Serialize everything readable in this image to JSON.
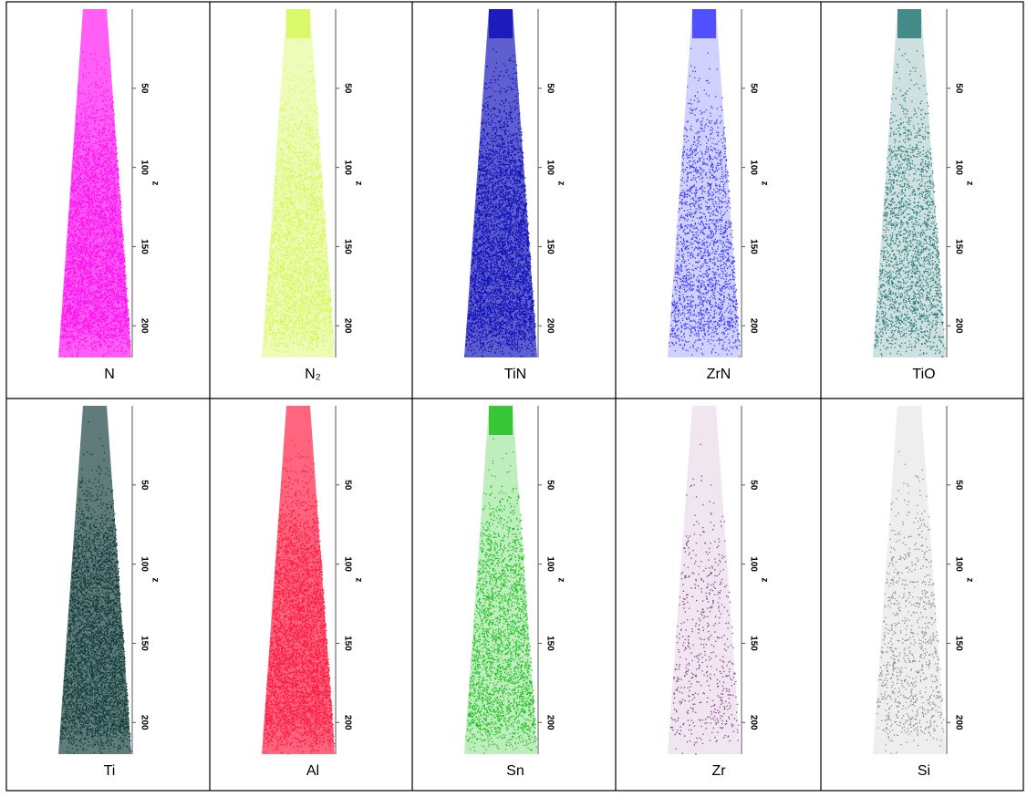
{
  "z_axis": {
    "label": "z",
    "lim": [
      0,
      220
    ],
    "ticks": [
      50,
      100,
      150,
      200
    ]
  },
  "panels": [
    {
      "label": "N",
      "color": "#ff10f0"
    },
    {
      "label": "N₂",
      "color": "#d6f75a"
    },
    {
      "label": "TiN",
      "color": "#1010b8"
    },
    {
      "label": "ZrN",
      "color": "#3a3aff"
    },
    {
      "label": "TiO",
      "color": "#2a7a78"
    },
    {
      "label": "Ti",
      "color": "#123c38"
    },
    {
      "label": "Al",
      "color": "#ff1a40"
    },
    {
      "label": "Sn",
      "color": "#20c020"
    },
    {
      "label": "Zr",
      "color": "#8a3a8a"
    },
    {
      "label": "Si",
      "color": "#8a8a8a"
    }
  ]
}
